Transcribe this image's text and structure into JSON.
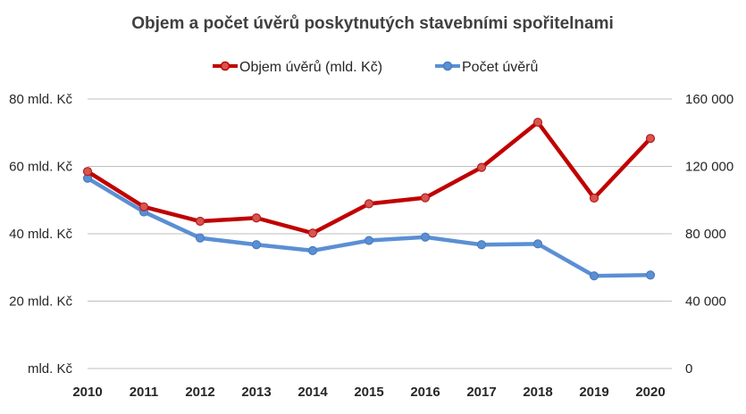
{
  "chart_data": {
    "type": "line",
    "title": "Objem a počet úvěrů poskytnutých stavebními spořitelnami",
    "categories": [
      "2010",
      "2011",
      "2012",
      "2013",
      "2014",
      "2015",
      "2016",
      "2017",
      "2018",
      "2019",
      "2020"
    ],
    "y_left": {
      "ylim": [
        0,
        80
      ],
      "ticks": [
        0,
        20,
        40,
        60,
        80
      ],
      "tick_labels": [
        "mld. Kč",
        "20 mld. Kč",
        "40 mld. Kč",
        "60 mld. Kč",
        "80 mld. Kč"
      ]
    },
    "y_right": {
      "ylim": [
        0,
        160000
      ],
      "ticks": [
        0,
        40000,
        80000,
        120000,
        160000
      ],
      "tick_labels": [
        "0",
        "40 000",
        "80 000",
        "120 000",
        "160 000"
      ]
    },
    "series": [
      {
        "name": "Objem úvěrů (mld. Kč)",
        "axis": "left",
        "color": "#c00000",
        "marker_color": "#d9534f",
        "values": [
          58.5,
          48,
          43.7,
          44.7,
          40.2,
          48.9,
          50.7,
          59.7,
          73.1,
          50.6,
          68.3
        ]
      },
      {
        "name": "Počet úvěrů",
        "axis": "right",
        "color": "#5b8fd4",
        "marker_color": "#5b8fd4",
        "values": [
          113000,
          93000,
          77500,
          73500,
          70000,
          76000,
          78000,
          73500,
          74000,
          55000,
          55500
        ]
      }
    ],
    "grid": true,
    "legend_position": "top"
  }
}
